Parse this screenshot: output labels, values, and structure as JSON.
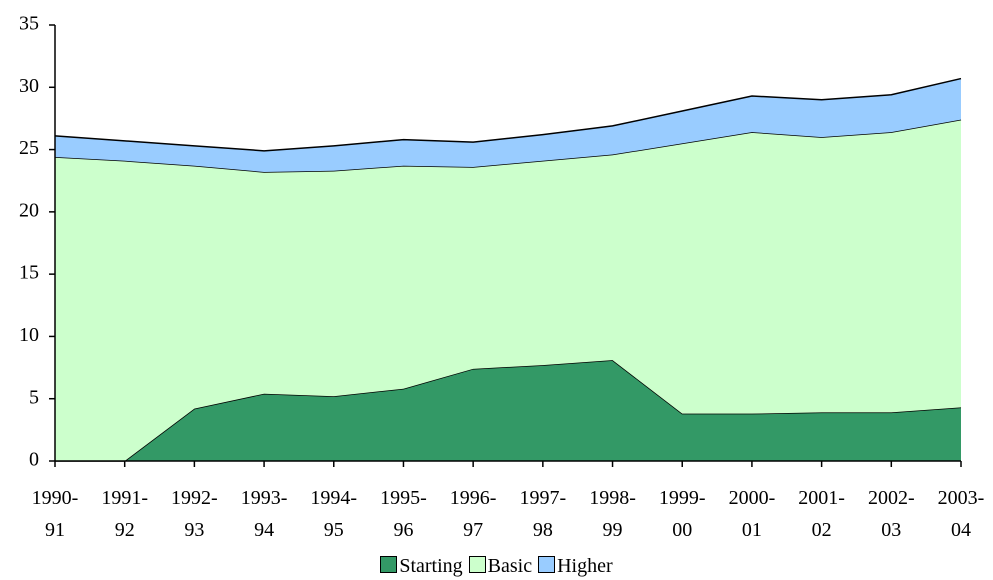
{
  "chart_data": {
    "type": "stacked_area",
    "categories": [
      "1990-\n91",
      "1991-\n92",
      "1992-\n93",
      "1993-\n94",
      "1994-\n95",
      "1995-\n96",
      "1996-\n97",
      "1997-\n98",
      "1998-\n99",
      "1999-\n00",
      "2000-\n01",
      "2001-\n02",
      "2002-\n03",
      "2003-\n04"
    ],
    "series": [
      {
        "name": "Starting",
        "color": "#339966",
        "values": [
          0,
          0,
          4.2,
          5.4,
          5.2,
          5.8,
          7.4,
          7.7,
          8.1,
          3.8,
          3.8,
          3.9,
          3.9,
          4.3
        ]
      },
      {
        "name": "Basic",
        "color": "#ccffcc",
        "values": [
          24.4,
          24.1,
          19.5,
          17.8,
          18.1,
          17.9,
          16.2,
          16.4,
          16.5,
          21.7,
          22.6,
          22.1,
          22.5,
          23.1
        ]
      },
      {
        "name": "Higher",
        "color": "#99ccff",
        "values": [
          1.7,
          1.6,
          1.6,
          1.7,
          2.0,
          2.1,
          2.0,
          2.1,
          2.3,
          2.6,
          2.9,
          3.0,
          3.0,
          3.3
        ]
      }
    ],
    "ylim": [
      0,
      35
    ],
    "yticks": [
      0,
      5,
      10,
      15,
      20,
      25,
      30,
      35
    ],
    "legend": "bottom"
  }
}
